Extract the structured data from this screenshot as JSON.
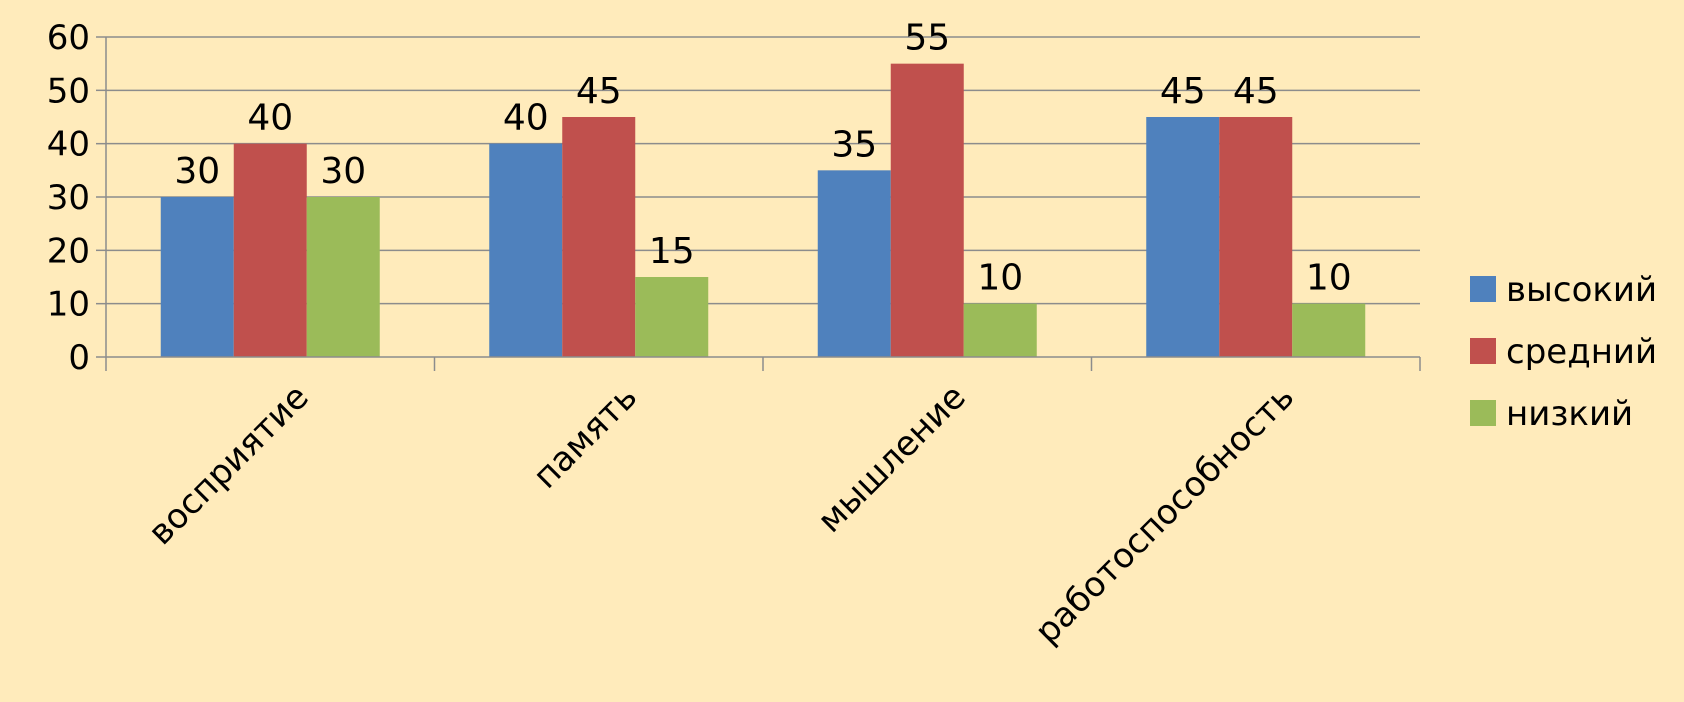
{
  "chart_data": {
    "type": "bar",
    "title": "",
    "xlabel": "",
    "ylabel": "",
    "categories": [
      "восприятие",
      "память",
      "мышление",
      "работоспособность"
    ],
    "series": [
      {
        "name": "высокий",
        "values": [
          30,
          40,
          35,
          45
        ],
        "color": "#4F81BD"
      },
      {
        "name": "средний",
        "values": [
          40,
          45,
          55,
          45
        ],
        "color": "#C0504D"
      },
      {
        "name": "низкий",
        "values": [
          30,
          15,
          10,
          10
        ],
        "color": "#9BBB59"
      }
    ],
    "ylim": [
      0,
      60
    ],
    "yticks": [
      0,
      10,
      20,
      30,
      40,
      50,
      60
    ],
    "grid": true,
    "legend_position": "right",
    "data_labels": true,
    "colors": {
      "background": "#FFEBBB",
      "gridline": "#8C8C8C",
      "axis": "#8C8C8C"
    }
  }
}
